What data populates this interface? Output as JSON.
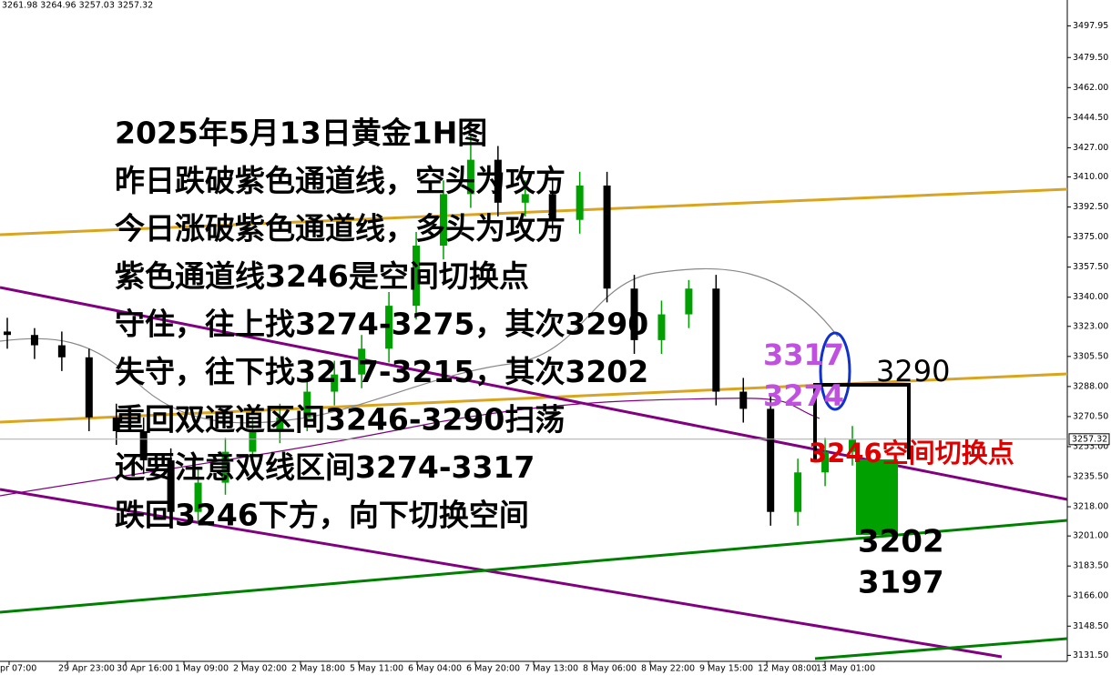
{
  "header_text": "3261.98 3264.96 3257.03 3257.32",
  "chart_data": {
    "type": "candlestick",
    "ylim": [
      3128,
      3513
    ],
    "yticks": [
      {
        "value": 3497.95,
        "label": "3497.95"
      },
      {
        "value": 3479.5,
        "label": "3479.50"
      },
      {
        "value": 3462,
        "label": "3462.00"
      },
      {
        "value": 3444.5,
        "label": "3444.50"
      },
      {
        "value": 3427,
        "label": "3427.00"
      },
      {
        "value": 3410,
        "label": "3410.00"
      },
      {
        "value": 3392.5,
        "label": "3392.50"
      },
      {
        "value": 3375,
        "label": "3375.00"
      },
      {
        "value": 3357.5,
        "label": "3357.50"
      },
      {
        "value": 3340,
        "label": "3340.00"
      },
      {
        "value": 3323,
        "label": "3323.00"
      },
      {
        "value": 3305.5,
        "label": "3305.50"
      },
      {
        "value": 3288,
        "label": "3288.00"
      },
      {
        "value": 3270.5,
        "label": "3270.50"
      },
      {
        "value": 3253,
        "label": "3253.00"
      },
      {
        "value": 3235.5,
        "label": "3235.50"
      },
      {
        "value": 3218,
        "label": "3218.00"
      },
      {
        "value": 3201,
        "label": "3201.00"
      },
      {
        "value": 3183.5,
        "label": "3183.50"
      },
      {
        "value": 3166,
        "label": "3166.00"
      },
      {
        "value": 3148.5,
        "label": "3148.50"
      },
      {
        "value": 3131.5,
        "label": "3131.50"
      }
    ],
    "current_price": {
      "value": 3257.32,
      "label": "3257.32"
    },
    "xtick_labels": [
      "pr 07:00",
      "29 Apr 23:00",
      "30 Apr 16:00",
      "1 May 09:00",
      "2 May 02:00",
      "2 May 18:00",
      "5 May 11:00",
      "6 May 04:00",
      "6 May 20:00",
      "7 May 13:00",
      "8 May 06:00",
      "8 May 22:00",
      "9 May 15:00",
      "12 May 08:00",
      "13 May 01:00"
    ],
    "up_color": "#00a000",
    "down_color": "#000000",
    "ohlc": [
      [
        3320,
        3328,
        3310,
        3318
      ],
      [
        3318,
        3322,
        3304,
        3312
      ],
      [
        3312,
        3320,
        3297,
        3305
      ],
      [
        3305,
        3310,
        3262,
        3270
      ],
      [
        3270,
        3278,
        3254,
        3262
      ],
      [
        3262,
        3270,
        3237,
        3245
      ],
      [
        3245,
        3252,
        3207,
        3215
      ],
      [
        3215,
        3240,
        3208,
        3232
      ],
      [
        3232,
        3258,
        3225,
        3250
      ],
      [
        3250,
        3270,
        3242,
        3262
      ],
      [
        3262,
        3278,
        3255,
        3270
      ],
      [
        3270,
        3293,
        3262,
        3285
      ],
      [
        3285,
        3303,
        3277,
        3295
      ],
      [
        3295,
        3318,
        3287,
        3310
      ],
      [
        3310,
        3343,
        3302,
        3335
      ],
      [
        3335,
        3378,
        3327,
        3370
      ],
      [
        3370,
        3408,
        3362,
        3400
      ],
      [
        3400,
        3435,
        3392,
        3420
      ],
      [
        3420,
        3428,
        3387,
        3395
      ],
      [
        3395,
        3408,
        3387,
        3400
      ],
      [
        3400,
        3408,
        3377,
        3385
      ],
      [
        3385,
        3413,
        3377,
        3405
      ],
      [
        3405,
        3413,
        3337,
        3345
      ],
      [
        3345,
        3353,
        3307,
        3315
      ],
      [
        3315,
        3338,
        3307,
        3330
      ],
      [
        3330,
        3350,
        3322,
        3345
      ],
      [
        3345,
        3353,
        3277,
        3285
      ],
      [
        3285,
        3293,
        3267,
        3275
      ],
      [
        3275,
        3283,
        3207,
        3215
      ],
      [
        3215,
        3246,
        3207,
        3238
      ],
      [
        3238,
        3258,
        3230,
        3250
      ],
      [
        3250,
        3265,
        3242,
        3257
      ]
    ]
  },
  "annotations": {
    "lines": [
      "2025年5月13日黄金1H图",
      "昨日跌破紫色通道线，空头为攻方",
      "今日涨破紫色通道线，多头为攻方",
      "紫色通道线3246是空间切换点",
      "守住，往上找3274-3275，其次3290",
      "失守，往下找3217-3215，其次3202",
      "重回双通道区间3246-3290扫荡",
      "还要注意双线区间3274-3317",
      "跌回3246下方，向下切换空间"
    ],
    "purple_top": "3317",
    "purple_bottom": "3274",
    "target_up": "3290",
    "switch_point": "3246空间切换点",
    "target_down_1": "3202",
    "target_down_2": "3197"
  }
}
